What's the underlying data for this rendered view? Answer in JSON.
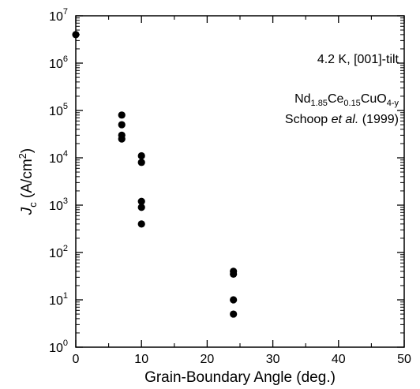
{
  "chart_data": {
    "type": "scatter",
    "title": "",
    "xlabel": "Grain-Boundary Angle (deg.)",
    "ylabel": {
      "main": "J",
      "sub": "c",
      "unit_pre": " (A/cm",
      "unit_sup": "2",
      "unit_post": ")"
    },
    "xlim": [
      0,
      50
    ],
    "ylim": [
      1,
      10000000
    ],
    "yscale": "log",
    "x_ticks": [
      "0",
      "10",
      "20",
      "30",
      "40",
      "50"
    ],
    "y_tick_exponents": [
      "0",
      "1",
      "2",
      "3",
      "4",
      "5",
      "6",
      "7"
    ],
    "y_tick_base": "10",
    "grid": false,
    "legend": "none",
    "annotations": {
      "condition": "4.2 K, [001]-tilt",
      "compound": [
        {
          "text": "Nd",
          "sub": false
        },
        {
          "text": "1.85",
          "sub": true
        },
        {
          "text": "Ce",
          "sub": false
        },
        {
          "text": "0.15",
          "sub": true
        },
        {
          "text": "CuO",
          "sub": false
        },
        {
          "text": "4-y",
          "sub": true
        }
      ],
      "reference": {
        "author": "Schoop ",
        "etal": "et al.",
        "year": " (1999)"
      }
    },
    "series": [
      {
        "color": "#000000",
        "points": [
          {
            "x": 0,
            "y": 4000000
          },
          {
            "x": 7,
            "y": 80000
          },
          {
            "x": 7,
            "y": 50000
          },
          {
            "x": 7,
            "y": 30000
          },
          {
            "x": 7,
            "y": 25000
          },
          {
            "x": 10,
            "y": 11000
          },
          {
            "x": 10,
            "y": 8000
          },
          {
            "x": 10,
            "y": 1200
          },
          {
            "x": 10,
            "y": 900
          },
          {
            "x": 10,
            "y": 400
          },
          {
            "x": 24,
            "y": 40
          },
          {
            "x": 24,
            "y": 35
          },
          {
            "x": 24,
            "y": 10
          },
          {
            "x": 24,
            "y": 5
          }
        ]
      }
    ]
  }
}
